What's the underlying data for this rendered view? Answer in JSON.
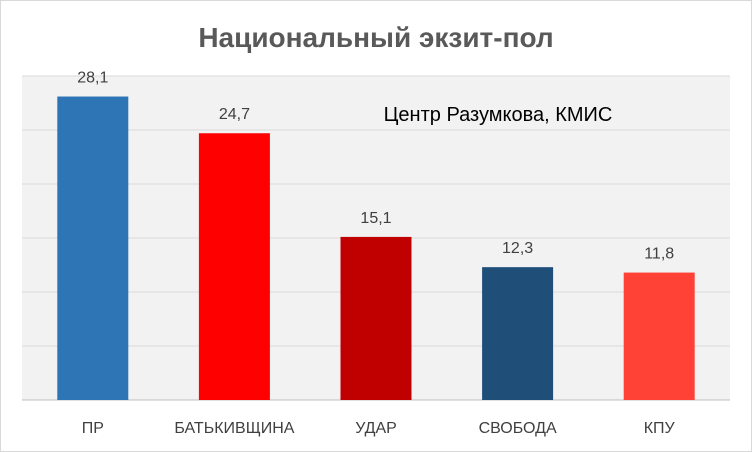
{
  "chart_data": {
    "type": "bar",
    "title": "Национальный экзит-пол",
    "annotation": "Центр Разумкова, КМИС",
    "categories": [
      "ПР",
      "БАТЬКИВЩИНА",
      "УДАР",
      "СВОБОДА",
      "КПУ"
    ],
    "values": [
      28.1,
      24.7,
      15.1,
      12.3,
      11.8
    ],
    "data_labels": [
      "28,1",
      "24,7",
      "15,1",
      "12,3",
      "11,8"
    ],
    "bar_colors": [
      "#2e75b6",
      "#ff0000",
      "#c00000",
      "#1f4e79",
      "#ff4136"
    ],
    "ylim": [
      0,
      30
    ],
    "grid": true,
    "legend": "none",
    "xlabel": "",
    "ylabel": ""
  },
  "colors": {
    "plot_background": "#f2f2f2",
    "gridline": "#d9d9d9",
    "title": "#595959",
    "label": "#404040"
  }
}
